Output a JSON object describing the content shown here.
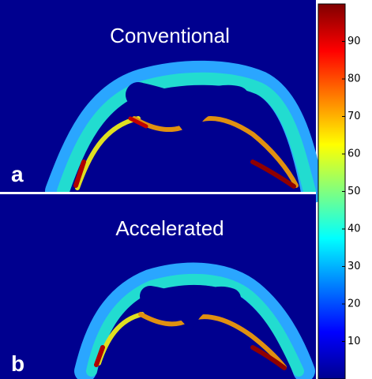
{
  "panels": [
    {
      "title": "Conventional",
      "label": "a"
    },
    {
      "title": "Accelerated",
      "label": "b"
    }
  ],
  "colorbar": {
    "lim": [
      0,
      100
    ],
    "ticks": [
      10,
      20,
      30,
      40,
      50,
      60,
      70,
      80,
      90
    ]
  }
}
